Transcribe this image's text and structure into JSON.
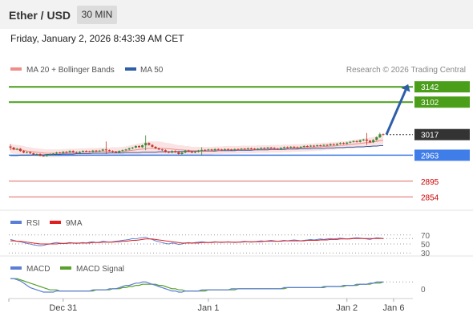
{
  "header": {
    "title": "Ether / USD",
    "timeframe": "30 MIN"
  },
  "datetime": "Friday, January 2, 2026 8:43:39 AM CET",
  "copyright": "Research © 2026 Trading Central",
  "colors": {
    "resistance": "#4a9e1a",
    "pivot": "#3f7de8",
    "support": "#e06666",
    "current": "#333333",
    "arrow": "#2e5ea8",
    "candle_up": "#3a8a3a",
    "candle_down": "#c0392b",
    "ma20": "#f28b8b",
    "ma50": "#2e5ea8",
    "bollinger_fill": "#fbe3e3",
    "rsi": "#5b7fd6",
    "rsi_ma": "#e02020",
    "macd": "#5b7fd6",
    "macd_signal": "#5aa02c"
  },
  "chart_data": [
    {
      "type": "candlestick",
      "title": "Ether / USD",
      "legend": [
        "MA 20 + Bollinger Bands",
        "MA 50"
      ],
      "ylim": [
        2840,
        3155
      ],
      "x_ticks": [
        "Dec 31",
        "Jan 1",
        "Jan 2",
        "Jan 6"
      ],
      "levels": [
        {
          "value": 3142,
          "label": "3142",
          "kind": "resistance"
        },
        {
          "value": 3102,
          "label": "3102",
          "kind": "resistance"
        },
        {
          "value": 3017,
          "label": "3017",
          "kind": "current"
        },
        {
          "value": 2963,
          "label": "2963",
          "kind": "pivot"
        },
        {
          "value": 2895,
          "label": "2895",
          "kind": "support"
        },
        {
          "value": 2854,
          "label": "2854",
          "kind": "support"
        }
      ],
      "close": [
        2983,
        2978,
        2980,
        2974,
        2970,
        2971,
        2968,
        2965,
        2966,
        2962,
        2961,
        2964,
        2966,
        2967,
        2970,
        2969,
        2972,
        2971,
        2974,
        2971,
        2969,
        2972,
        2974,
        2973,
        2972,
        2975,
        2973,
        2975,
        2978,
        2976,
        2974,
        2972,
        2970,
        2974,
        2976,
        2978,
        2981,
        2983,
        2987,
        2984,
        2989,
        2995,
        2990,
        2985,
        2981,
        2978,
        2976,
        2972,
        2970,
        2974,
        2971,
        2966,
        2970,
        2975,
        2973,
        2970,
        2972,
        2975,
        2977,
        2976,
        2978,
        2976,
        2979,
        2978,
        2977,
        2979,
        2978,
        2977,
        2979,
        2978,
        2980,
        2979,
        2981,
        2980,
        2978,
        2980,
        2982,
        2981,
        2983,
        2982,
        2980,
        2979,
        2982,
        2984,
        2983,
        2985,
        2984,
        2983,
        2985,
        2987,
        2986,
        2988,
        2987,
        2989,
        2988,
        2990,
        2989,
        2992,
        2990,
        2993,
        2995,
        2993,
        2996,
        2998,
        3000,
        2998,
        3002,
        3004,
        3001,
        2997,
        3003,
        3010,
        3018,
        3017
      ],
      "wicks": [
        [
          0,
          2992,
          2976
        ],
        [
          29,
          2999,
          2966
        ],
        [
          41,
          3015,
          2976
        ],
        [
          58,
          2984,
          2962
        ],
        [
          108,
          3021,
          2990
        ],
        [
          112,
          3022,
          3008
        ]
      ],
      "ma20": [
        2980,
        2979,
        2978,
        2977,
        2976,
        2974,
        2973,
        2972,
        2971,
        2970,
        2969,
        2968,
        2968,
        2968,
        2968,
        2968,
        2969,
        2969,
        2970,
        2970,
        2970,
        2971,
        2971,
        2971,
        2972,
        2972,
        2972,
        2973,
        2973,
        2973,
        2973,
        2973,
        2973,
        2973,
        2973,
        2974,
        2975,
        2976,
        2977,
        2978,
        2979,
        2980,
        2981,
        2981,
        2981,
        2981,
        2981,
        2980,
        2980,
        2979,
        2978,
        2977,
        2977,
        2976,
        2976,
        2975,
        2975,
        2975,
        2975,
        2975,
        2975,
        2975,
        2976,
        2976,
        2976,
        2977,
        2977,
        2977,
        2977,
        2977,
        2978,
        2978,
        2978,
        2978,
        2978,
        2979,
        2979,
        2979,
        2979,
        2980,
        2980,
        2980,
        2980,
        2981,
        2981,
        2981,
        2982,
        2982,
        2982,
        2983,
        2983,
        2984,
        2984,
        2985,
        2985,
        2986,
        2986,
        2987,
        2987,
        2988,
        2989,
        2989,
        2990,
        2991,
        2992,
        2993,
        2994,
        2995,
        2996,
        2996,
        2998,
        2999,
        3001,
        3002
      ],
      "ma50": [
        2962,
        2962,
        2962,
        2963,
        2963,
        2963,
        2963,
        2964,
        2964,
        2964,
        2964,
        2965,
        2965,
        2965,
        2965,
        2965,
        2966,
        2966,
        2966,
        2966,
        2967,
        2967,
        2967,
        2967,
        2967,
        2968,
        2968,
        2968,
        2968,
        2968,
        2969,
        2969,
        2969,
        2969,
        2969,
        2970,
        2970,
        2970,
        2970,
        2970,
        2971,
        2971,
        2971,
        2971,
        2971,
        2972,
        2972,
        2972,
        2972,
        2972,
        2972,
        2973,
        2973,
        2973,
        2973,
        2973,
        2973,
        2974,
        2974,
        2974,
        2974,
        2974,
        2974,
        2975,
        2975,
        2975,
        2975,
        2975,
        2975,
        2976,
        2976,
        2976,
        2976,
        2976,
        2977,
        2977,
        2977,
        2977,
        2977,
        2978,
        2978,
        2978,
        2978,
        2978,
        2979,
        2979,
        2979,
        2979,
        2980,
        2980,
        2980,
        2980,
        2981,
        2981,
        2981,
        2981,
        2982,
        2982,
        2982,
        2983,
        2983,
        2983,
        2984,
        2984,
        2984,
        2985,
        2985,
        2985,
        2986,
        2986,
        2987,
        2987,
        2988,
        2988
      ],
      "boll_width": [
        12,
        12,
        12,
        12,
        11,
        11,
        11,
        10,
        10,
        10,
        10,
        10,
        10,
        10,
        10,
        10,
        10,
        10,
        10,
        10,
        10,
        10,
        10,
        10,
        10,
        10,
        10,
        10,
        10,
        10,
        10,
        11,
        11,
        11,
        12,
        12,
        13,
        14,
        15,
        16,
        17,
        18,
        18,
        18,
        18,
        18,
        17,
        16,
        15,
        14,
        13,
        12,
        12,
        11,
        11,
        10,
        10,
        10,
        10,
        10,
        10,
        10,
        10,
        10,
        10,
        10,
        10,
        10,
        10,
        10,
        10,
        10,
        10,
        10,
        10,
        10,
        10,
        10,
        10,
        10,
        10,
        10,
        10,
        10,
        10,
        10,
        10,
        10,
        10,
        10,
        10,
        10,
        10,
        10,
        10,
        10,
        10,
        10,
        10,
        10,
        10,
        10,
        10,
        11,
        11,
        11,
        12,
        12,
        12,
        13,
        13,
        14,
        14,
        15
      ],
      "projection": {
        "from": 3017,
        "to": 3142
      }
    },
    {
      "type": "line",
      "legend": [
        "RSI",
        "9MA"
      ],
      "ylim": [
        25,
        75
      ],
      "y_ticks": [
        70,
        50,
        30
      ],
      "series": [
        {
          "name": "RSI",
          "values": [
            60,
            58,
            56,
            55,
            53,
            51,
            50,
            48,
            47,
            46,
            47,
            49,
            50,
            52,
            53,
            52,
            51,
            52,
            53,
            52,
            51,
            52,
            53,
            52,
            54,
            55,
            53,
            54,
            56,
            55,
            54,
            55,
            56,
            57,
            58,
            59,
            60,
            62,
            61,
            63,
            64,
            65,
            62,
            60,
            57,
            55,
            53,
            51,
            50,
            52,
            51,
            49,
            50,
            52,
            53,
            52,
            53,
            54,
            55,
            54,
            53,
            54,
            55,
            54,
            53,
            54,
            55,
            54,
            53,
            54,
            55,
            56,
            55,
            54,
            55,
            56,
            57,
            56,
            57,
            58,
            57,
            56,
            57,
            58,
            57,
            58,
            59,
            58,
            57,
            58,
            59,
            60,
            59,
            60,
            61,
            60,
            61,
            62,
            61,
            62,
            63,
            62,
            61,
            62,
            63,
            64,
            63,
            62,
            61,
            60,
            62,
            64,
            63,
            62
          ]
        },
        {
          "name": "9MA",
          "values": [
            57,
            57,
            56,
            56,
            55,
            54,
            53,
            52,
            51,
            50,
            50,
            50,
            50,
            50,
            50,
            51,
            51,
            51,
            52,
            52,
            52,
            52,
            52,
            52,
            52,
            53,
            53,
            53,
            54,
            54,
            54,
            54,
            55,
            55,
            56,
            56,
            57,
            58,
            58,
            59,
            60,
            61,
            61,
            61,
            60,
            59,
            58,
            57,
            56,
            55,
            54,
            53,
            52,
            52,
            52,
            52,
            52,
            52,
            53,
            53,
            53,
            53,
            54,
            54,
            54,
            54,
            54,
            54,
            54,
            54,
            54,
            55,
            55,
            55,
            55,
            55,
            55,
            56,
            56,
            56,
            56,
            56,
            56,
            57,
            57,
            57,
            57,
            57,
            57,
            57,
            58,
            58,
            58,
            58,
            59,
            59,
            59,
            60,
            60,
            60,
            61,
            61,
            61,
            61,
            62,
            62,
            62,
            62,
            62,
            62,
            62,
            62,
            62,
            62
          ]
        }
      ]
    },
    {
      "type": "line",
      "legend": [
        "MACD",
        "MACD Signal"
      ],
      "y_ticks": [
        0
      ],
      "ylim": [
        -8,
        12
      ],
      "series": [
        {
          "name": "MACD",
          "values": [
            9,
            9,
            8,
            7,
            5,
            3,
            1,
            0,
            -1,
            -2,
            -3,
            -3,
            -3,
            -3,
            -2,
            -2,
            -2,
            -2,
            -2,
            -2,
            -2,
            -2,
            -2,
            -2,
            -2,
            -1,
            -1,
            -1,
            -1,
            -1,
            0,
            0,
            0,
            1,
            2,
            3,
            3,
            4,
            5,
            5,
            6,
            6,
            5,
            4,
            3,
            2,
            1,
            0,
            -1,
            -2,
            -2,
            -3,
            -3,
            -2,
            -2,
            -2,
            -2,
            -2,
            -1,
            -1,
            -1,
            -1,
            -1,
            -1,
            -1,
            -1,
            -1,
            0,
            0,
            0,
            0,
            0,
            0,
            0,
            0,
            0,
            0,
            0,
            0,
            0,
            0,
            0,
            0,
            1,
            1,
            1,
            1,
            1,
            1,
            1,
            1,
            1,
            1,
            1,
            1,
            2,
            2,
            2,
            2,
            2,
            2,
            3,
            3,
            3,
            3,
            4,
            4,
            4,
            4,
            5,
            5,
            6,
            6,
            6
          ]
        },
        {
          "name": "MACD Signal",
          "values": [
            9,
            9,
            9,
            8,
            7,
            6,
            5,
            4,
            3,
            2,
            1,
            0,
            -1,
            -1,
            -1,
            -2,
            -2,
            -2,
            -2,
            -2,
            -2,
            -2,
            -2,
            -2,
            -2,
            -2,
            -1,
            -1,
            -1,
            -1,
            -1,
            0,
            0,
            0,
            1,
            1,
            2,
            2,
            3,
            3,
            4,
            4,
            4,
            4,
            4,
            3,
            3,
            2,
            1,
            0,
            0,
            -1,
            -1,
            -2,
            -2,
            -2,
            -2,
            -2,
            -2,
            -2,
            -1,
            -1,
            -1,
            -1,
            -1,
            -1,
            -1,
            -1,
            -1,
            0,
            0,
            0,
            0,
            0,
            0,
            0,
            0,
            0,
            0,
            0,
            0,
            0,
            0,
            0,
            1,
            1,
            1,
            1,
            1,
            1,
            1,
            1,
            1,
            1,
            1,
            1,
            2,
            2,
            2,
            2,
            2,
            2,
            3,
            3,
            3,
            3,
            4,
            4,
            4,
            4,
            5,
            5,
            5,
            6
          ]
        }
      ]
    }
  ]
}
